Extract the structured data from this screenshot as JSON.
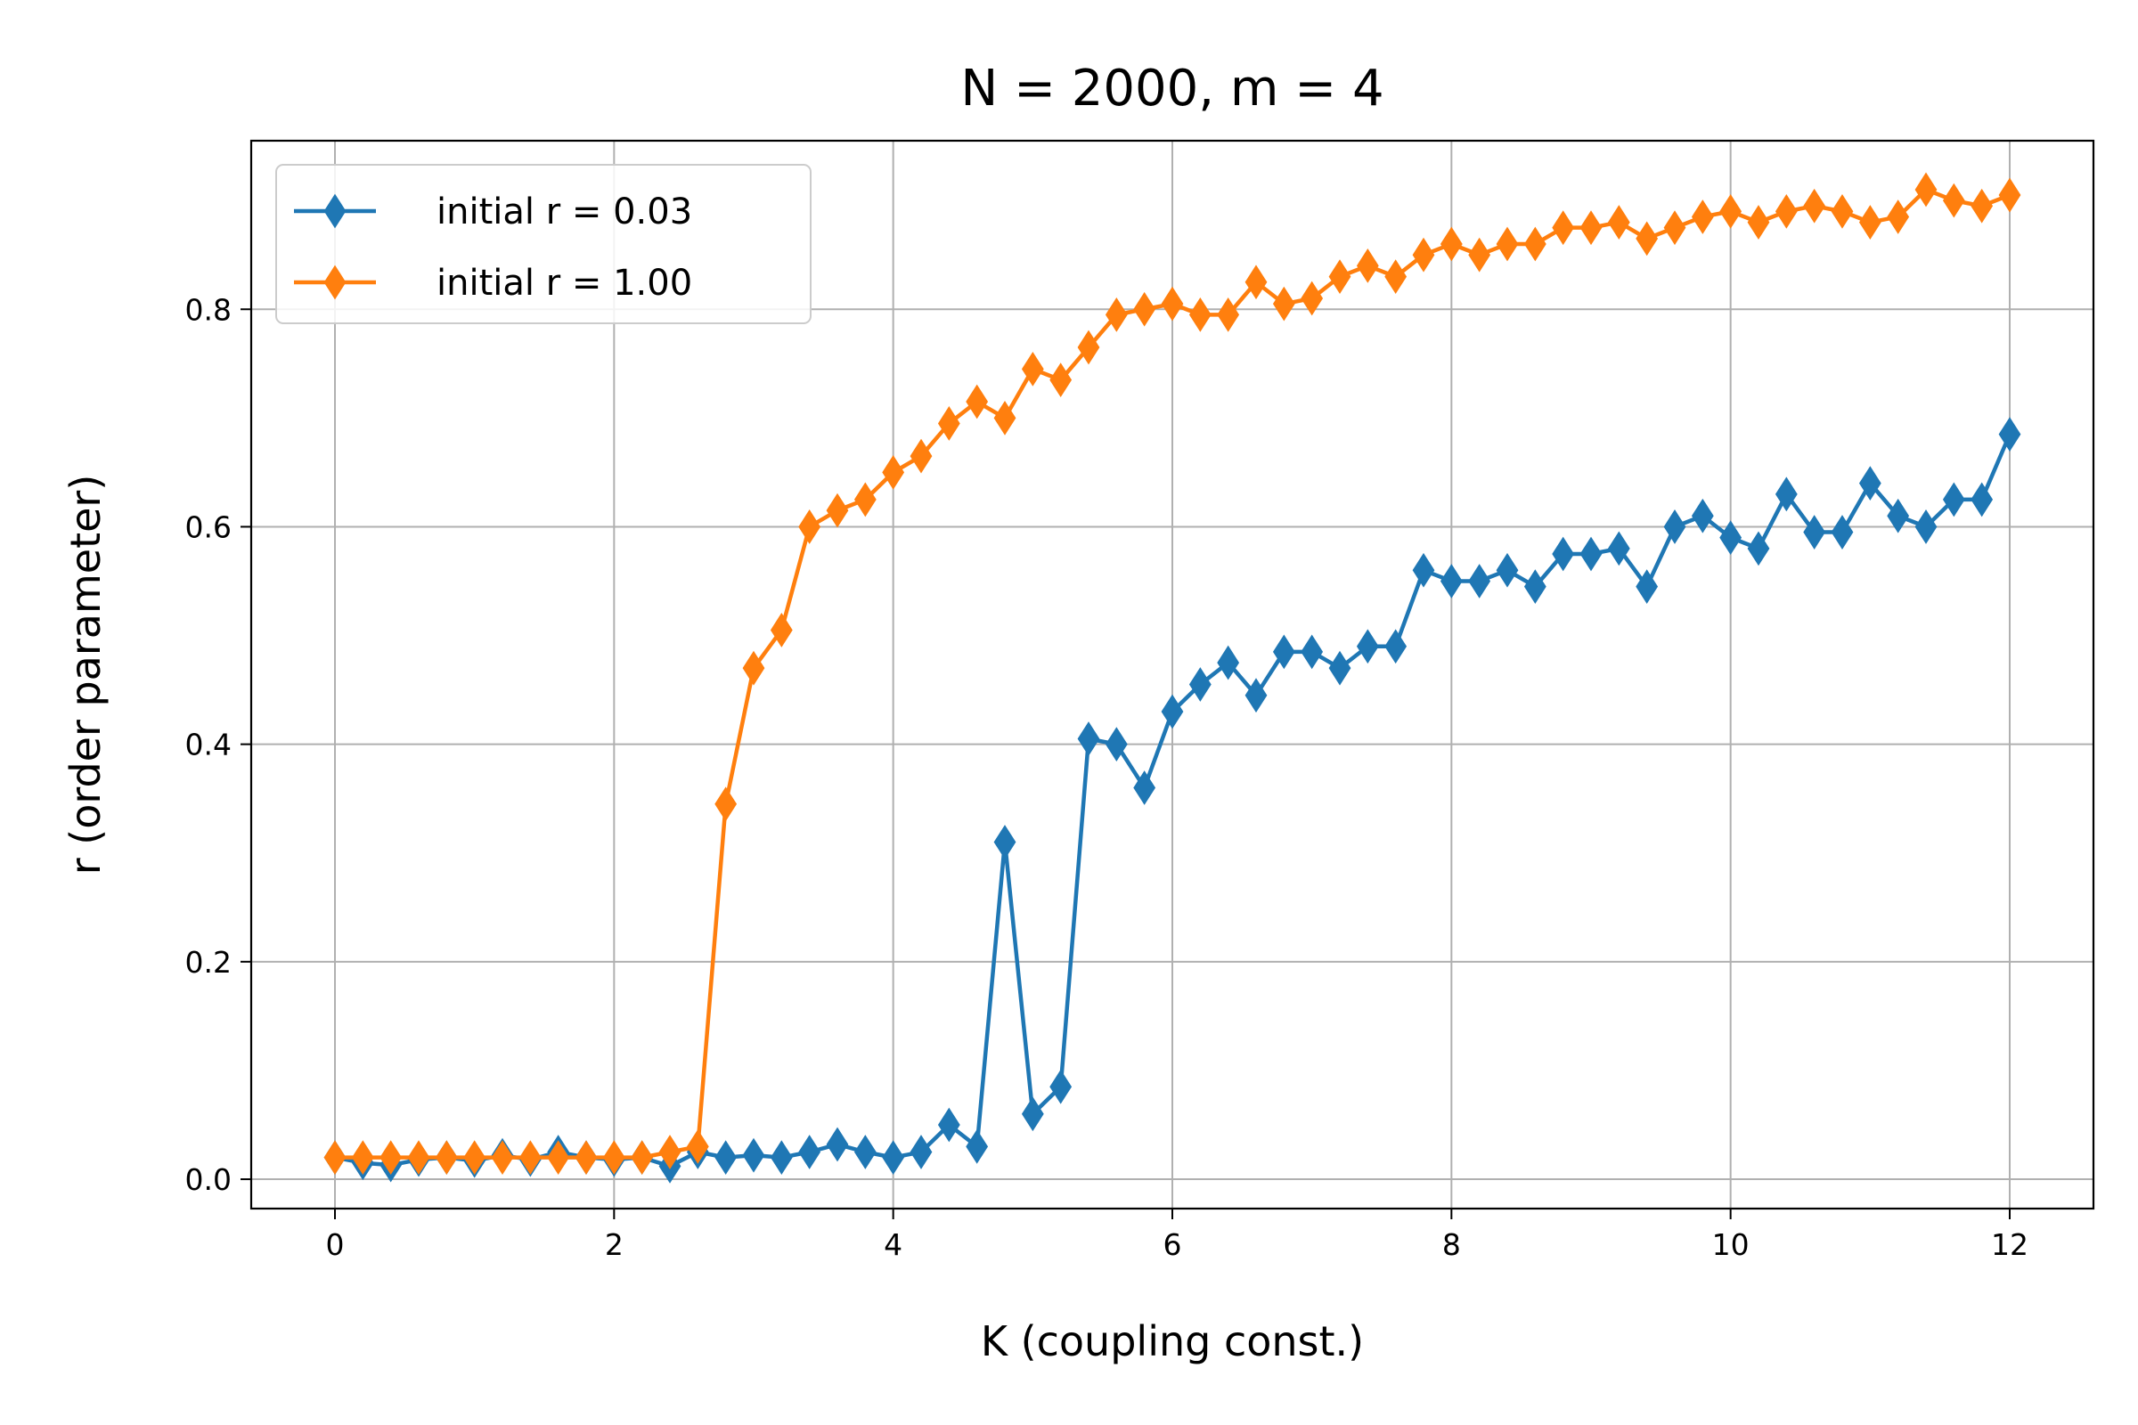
{
  "chart_data": {
    "type": "line",
    "title": "N = 2000, m = 4",
    "xlabel": "K (coupling const.)",
    "ylabel": "r (order parameter)",
    "xlim": [
      -0.6,
      12.6
    ],
    "ylim": [
      -0.027,
      0.955
    ],
    "xticks": [
      0,
      2,
      4,
      6,
      8,
      10,
      12
    ],
    "yticks": [
      0.0,
      0.2,
      0.4,
      0.6,
      0.8
    ],
    "xtick_labels": [
      "0",
      "2",
      "4",
      "6",
      "8",
      "10",
      "12"
    ],
    "ytick_labels": [
      "0.0",
      "0.2",
      "0.4",
      "0.6",
      "0.8"
    ],
    "grid": true,
    "legend_position": "upper-left",
    "marker": "thin-diamond",
    "x": [
      0.0,
      0.2,
      0.4,
      0.6,
      0.8,
      1.0,
      1.2,
      1.4,
      1.6,
      1.8,
      2.0,
      2.2,
      2.4,
      2.6,
      2.8,
      3.0,
      3.2,
      3.4,
      3.6,
      3.8,
      4.0,
      4.2,
      4.4,
      4.6,
      4.8,
      5.0,
      5.2,
      5.4,
      5.6,
      5.8,
      6.0,
      6.2,
      6.4,
      6.6,
      6.8,
      7.0,
      7.2,
      7.4,
      7.6,
      7.8,
      8.0,
      8.2,
      8.4,
      8.6,
      8.8,
      9.0,
      9.2,
      9.4,
      9.6,
      9.8,
      10.0,
      10.2,
      10.4,
      10.6,
      10.8,
      11.0,
      11.2,
      11.4,
      11.6,
      11.8,
      12.0
    ],
    "series": [
      {
        "name": "initial r = 0.03",
        "color": "#1f77b4",
        "values": [
          0.02,
          0.015,
          0.013,
          0.018,
          0.02,
          0.017,
          0.022,
          0.018,
          0.025,
          0.02,
          0.018,
          0.02,
          0.012,
          0.025,
          0.02,
          0.022,
          0.02,
          0.025,
          0.032,
          0.025,
          0.02,
          0.025,
          0.05,
          0.03,
          0.31,
          0.06,
          0.085,
          0.405,
          0.4,
          0.36,
          0.43,
          0.455,
          0.475,
          0.445,
          0.485,
          0.485,
          0.47,
          0.49,
          0.49,
          0.56,
          0.55,
          0.55,
          0.56,
          0.545,
          0.575,
          0.575,
          0.58,
          0.545,
          0.6,
          0.61,
          0.59,
          0.58,
          0.63,
          0.595,
          0.595,
          0.64,
          0.61,
          0.6,
          0.625,
          0.625,
          0.685
        ]
      },
      {
        "name": "initial r = 1.00",
        "color": "#ff7f0e",
        "values": [
          0.02,
          0.02,
          0.02,
          0.02,
          0.02,
          0.02,
          0.02,
          0.02,
          0.02,
          0.02,
          0.02,
          0.02,
          0.025,
          0.03,
          0.345,
          0.47,
          0.505,
          0.6,
          0.615,
          0.625,
          0.65,
          0.665,
          0.695,
          0.715,
          0.7,
          0.745,
          0.735,
          0.765,
          0.795,
          0.8,
          0.805,
          0.795,
          0.795,
          0.825,
          0.805,
          0.81,
          0.83,
          0.84,
          0.83,
          0.85,
          0.86,
          0.85,
          0.86,
          0.86,
          0.875,
          0.875,
          0.88,
          0.865,
          0.875,
          0.885,
          0.89,
          0.88,
          0.89,
          0.895,
          0.89,
          0.88,
          0.885,
          0.91,
          0.9,
          0.895,
          0.905
        ]
      }
    ]
  }
}
